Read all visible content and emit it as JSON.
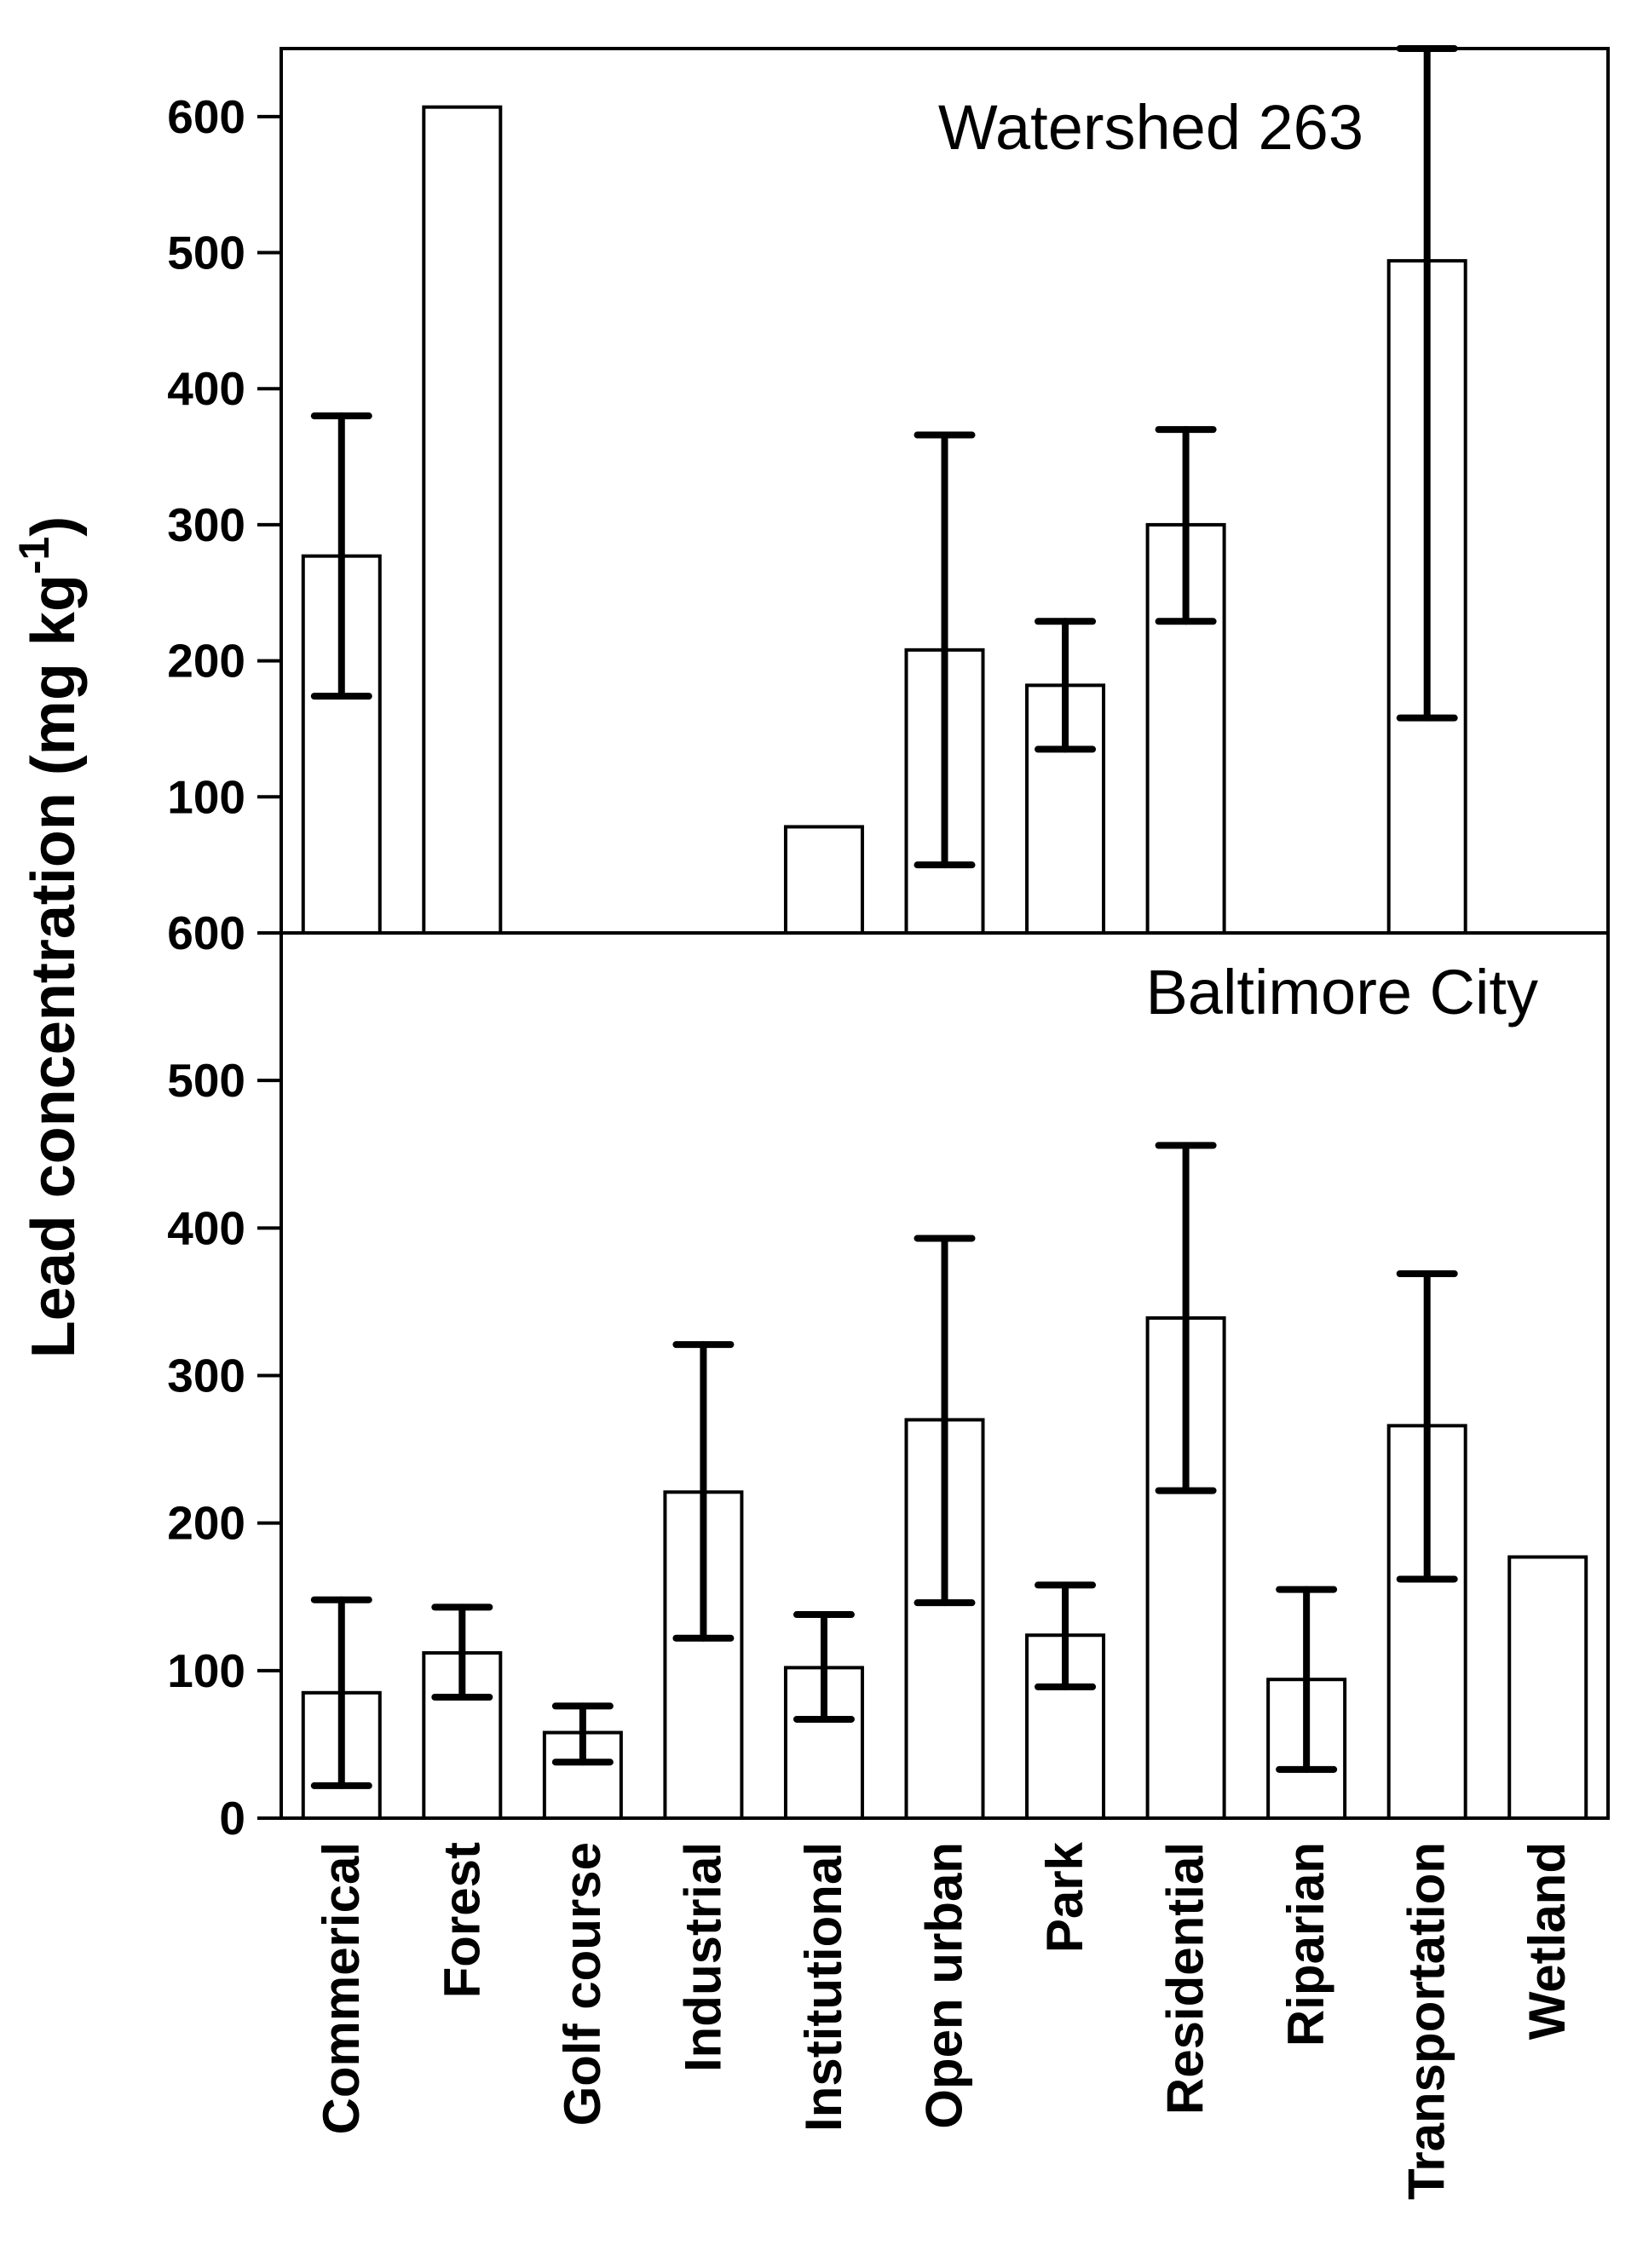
{
  "chart_data": {
    "type": "bar",
    "ylabel": "Lead concentration (mg kg",
    "ylabel_superscript": "-1",
    "ylabel_close": ")",
    "categories": [
      "Commerical",
      "Forest",
      "Golf course",
      "Industrial",
      "Institutional",
      "Open urban",
      "Park",
      "Residential",
      "Riparian",
      "Transportation",
      "Wetland"
    ],
    "panels": [
      {
        "title": "Watershed 263",
        "ylim": [
          0,
          650
        ],
        "yticks": [
          100,
          200,
          300,
          400,
          500,
          600
        ],
        "values": [
          277,
          607,
          null,
          null,
          78,
          208,
          182,
          300,
          null,
          494,
          null
        ],
        "err_low": [
          174,
          null,
          null,
          null,
          null,
          50,
          135,
          229,
          null,
          158,
          null
        ],
        "err_high": [
          380,
          null,
          null,
          null,
          null,
          366,
          229,
          370,
          null,
          650,
          null
        ]
      },
      {
        "title": "Baltimore City",
        "ylim": [
          0,
          600
        ],
        "yticks": [
          0,
          100,
          200,
          300,
          400,
          500,
          600
        ],
        "values": [
          85,
          112,
          58,
          221,
          102,
          270,
          124,
          339,
          94,
          266,
          177
        ],
        "err_low": [
          22,
          82,
          38,
          122,
          67,
          146,
          89,
          222,
          33,
          162,
          null
        ],
        "err_high": [
          148,
          143,
          76,
          321,
          138,
          393,
          158,
          456,
          155,
          369,
          null
        ]
      }
    ]
  }
}
